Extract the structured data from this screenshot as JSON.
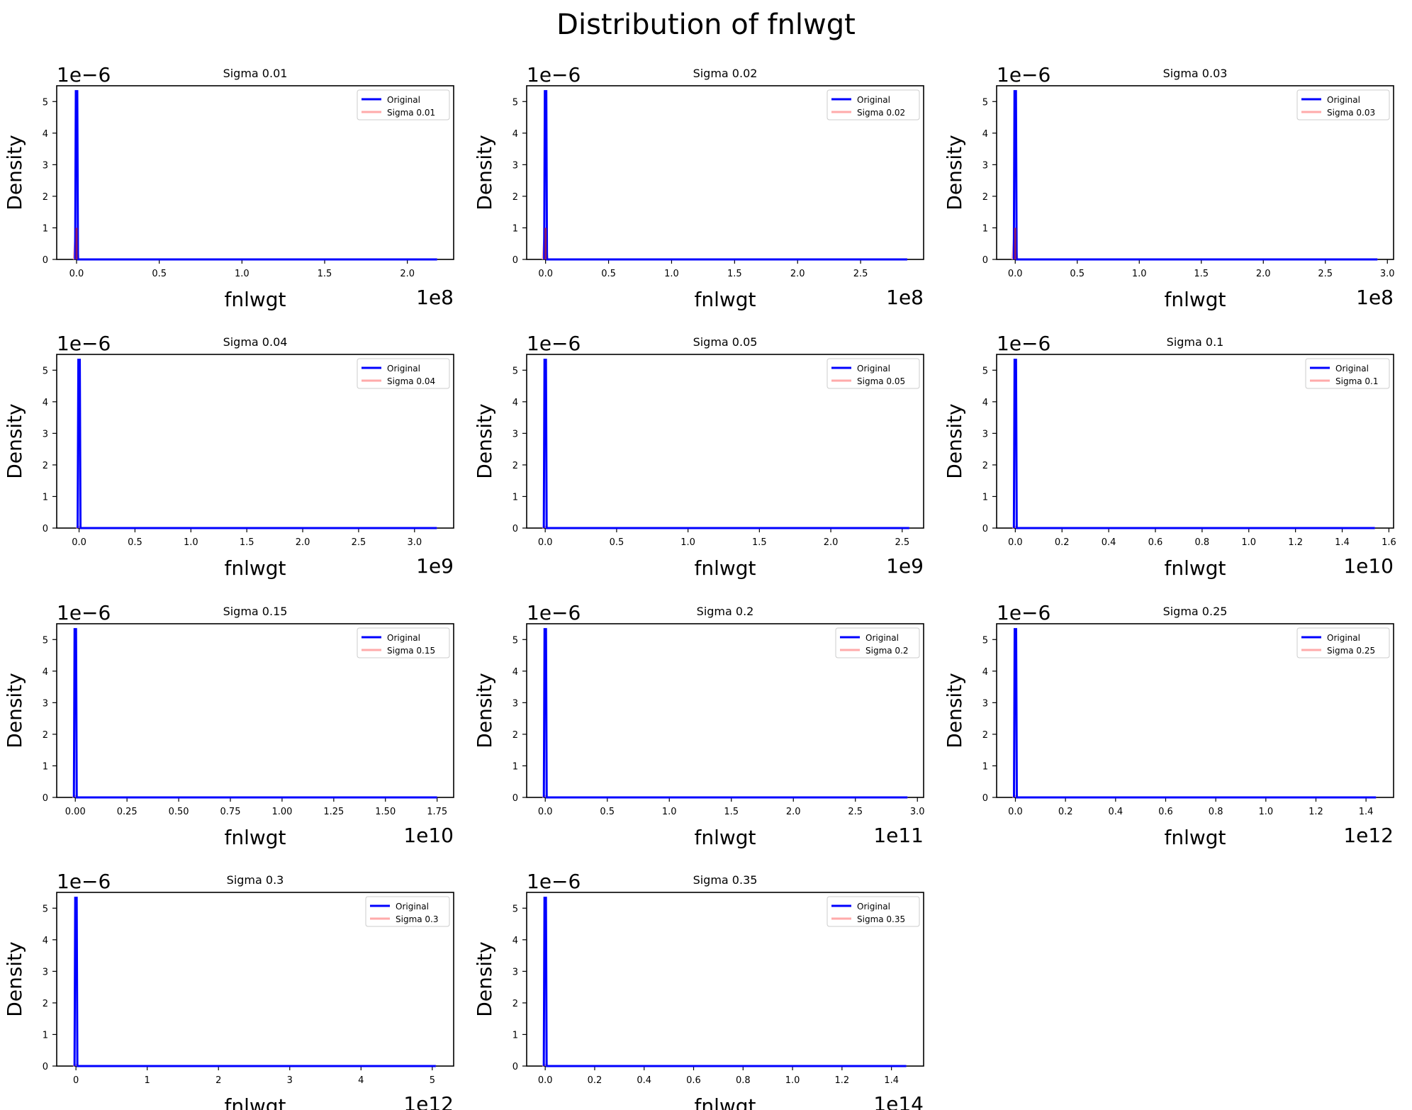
{
  "figure_title": "Distribution of fnlwgt",
  "colors": {
    "original": "#0000ff",
    "sigma": "#ffaaaa",
    "overlap": "#8a1a6b"
  },
  "chart_data": [
    {
      "type": "line",
      "title": "Sigma 0.01",
      "xlabel": "fnlwgt",
      "ylabel": "Density",
      "x_offset": "1e8",
      "y_offset": "1e−6",
      "xlim": [
        -0.12,
        2.28
      ],
      "ylim": [
        0,
        5.5
      ],
      "xticks": [
        0,
        0.5,
        1.0,
        1.5,
        2.0
      ],
      "xtick_labels": [
        "0.0",
        "0.5",
        "1.0",
        "1.5",
        "2.0"
      ],
      "yticks": [
        0,
        1,
        2,
        3,
        4,
        5
      ],
      "ytick_labels": [
        "0",
        "1",
        "2",
        "3",
        "4",
        "5"
      ],
      "line_x_end": 2.18,
      "series": [
        {
          "name": "Original",
          "peak_x": 0,
          "peak_y": 5.33
        },
        {
          "name": "Sigma 0.01",
          "peak_x": 0,
          "peak_y": 1.0
        }
      ]
    },
    {
      "type": "line",
      "title": "Sigma 0.02",
      "xlabel": "fnlwgt",
      "ylabel": "Density",
      "x_offset": "1e8",
      "y_offset": "1e−6",
      "xlim": [
        -0.15,
        3.0
      ],
      "ylim": [
        0,
        5.5
      ],
      "xticks": [
        0,
        0.5,
        1.0,
        1.5,
        2.0,
        2.5
      ],
      "xtick_labels": [
        "0.0",
        "0.5",
        "1.0",
        "1.5",
        "2.0",
        "2.5"
      ],
      "yticks": [
        0,
        1,
        2,
        3,
        4,
        5
      ],
      "ytick_labels": [
        "0",
        "1",
        "2",
        "3",
        "4",
        "5"
      ],
      "line_x_end": 2.87,
      "series": [
        {
          "name": "Original",
          "peak_x": 0,
          "peak_y": 5.33
        },
        {
          "name": "Sigma 0.02",
          "peak_x": 0,
          "peak_y": 1.0
        }
      ]
    },
    {
      "type": "line",
      "title": "Sigma 0.03",
      "xlabel": "fnlwgt",
      "ylabel": "Density",
      "x_offset": "1e8",
      "y_offset": "1e−6",
      "xlim": [
        -0.15,
        3.05
      ],
      "ylim": [
        0,
        5.5
      ],
      "xticks": [
        0,
        0.5,
        1.0,
        1.5,
        2.0,
        2.5,
        3.0
      ],
      "xtick_labels": [
        "0.0",
        "0.5",
        "1.0",
        "1.5",
        "2.0",
        "2.5",
        "3.0"
      ],
      "yticks": [
        0,
        1,
        2,
        3,
        4,
        5
      ],
      "ytick_labels": [
        "0",
        "1",
        "2",
        "3",
        "4",
        "5"
      ],
      "line_x_end": 2.92,
      "series": [
        {
          "name": "Original",
          "peak_x": 0,
          "peak_y": 5.33
        },
        {
          "name": "Sigma 0.03",
          "peak_x": 0,
          "peak_y": 1.0
        }
      ]
    },
    {
      "type": "line",
      "title": "Sigma 0.04",
      "xlabel": "fnlwgt",
      "ylabel": "Density",
      "x_offset": "1e9",
      "y_offset": "1e−6",
      "xlim": [
        -0.2,
        3.35
      ],
      "ylim": [
        0,
        5.5
      ],
      "xticks": [
        0,
        0.5,
        1.0,
        1.5,
        2.0,
        2.5,
        3.0
      ],
      "xtick_labels": [
        "0.0",
        "0.5",
        "1.0",
        "1.5",
        "2.0",
        "2.5",
        "3.0"
      ],
      "yticks": [
        0,
        1,
        2,
        3,
        4,
        5
      ],
      "ytick_labels": [
        "0",
        "1",
        "2",
        "3",
        "4",
        "5"
      ],
      "line_x_end": 3.2,
      "series": [
        {
          "name": "Original",
          "peak_x": 0,
          "peak_y": 5.33
        },
        {
          "name": "Sigma 0.04",
          "peak_x": 0,
          "peak_y": 0.05
        }
      ]
    },
    {
      "type": "line",
      "title": "Sigma 0.05",
      "xlabel": "fnlwgt",
      "ylabel": "Density",
      "x_offset": "1e9",
      "y_offset": "1e−6",
      "xlim": [
        -0.13,
        2.65
      ],
      "ylim": [
        0,
        5.5
      ],
      "xticks": [
        0,
        0.5,
        1.0,
        1.5,
        2.0,
        2.5
      ],
      "xtick_labels": [
        "0.0",
        "0.5",
        "1.0",
        "1.5",
        "2.0",
        "2.5"
      ],
      "yticks": [
        0,
        1,
        2,
        3,
        4,
        5
      ],
      "ytick_labels": [
        "0",
        "1",
        "2",
        "3",
        "4",
        "5"
      ],
      "line_x_end": 2.55,
      "series": [
        {
          "name": "Original",
          "peak_x": 0,
          "peak_y": 5.33
        },
        {
          "name": "Sigma 0.05",
          "peak_x": 0,
          "peak_y": 0.05
        }
      ]
    },
    {
      "type": "line",
      "title": "Sigma 0.1",
      "xlabel": "fnlwgt",
      "ylabel": "Density",
      "x_offset": "1e10",
      "y_offset": "1e−6",
      "xlim": [
        -0.08,
        1.62
      ],
      "ylim": [
        0,
        5.5
      ],
      "xticks": [
        0,
        0.2,
        0.4,
        0.6,
        0.8,
        1.0,
        1.2,
        1.4,
        1.6
      ],
      "xtick_labels": [
        "0.0",
        "0.2",
        "0.4",
        "0.6",
        "0.8",
        "1.0",
        "1.2",
        "1.4",
        "1.6"
      ],
      "yticks": [
        0,
        1,
        2,
        3,
        4,
        5
      ],
      "ytick_labels": [
        "0",
        "1",
        "2",
        "3",
        "4",
        "5"
      ],
      "line_x_end": 1.54,
      "series": [
        {
          "name": "Original",
          "peak_x": 0,
          "peak_y": 5.33
        },
        {
          "name": "Sigma 0.1",
          "peak_x": 0,
          "peak_y": 0.05
        }
      ]
    },
    {
      "type": "line",
      "title": "Sigma 0.15",
      "xlabel": "fnlwgt",
      "ylabel": "Density",
      "x_offset": "1e10",
      "y_offset": "1e−6",
      "xlim": [
        -0.09,
        1.83
      ],
      "ylim": [
        0,
        5.5
      ],
      "xticks": [
        0,
        0.25,
        0.5,
        0.75,
        1.0,
        1.25,
        1.5,
        1.75
      ],
      "xtick_labels": [
        "0.00",
        "0.25",
        "0.50",
        "0.75",
        "1.00",
        "1.25",
        "1.50",
        "1.75"
      ],
      "yticks": [
        0,
        1,
        2,
        3,
        4,
        5
      ],
      "ytick_labels": [
        "0",
        "1",
        "2",
        "3",
        "4",
        "5"
      ],
      "line_x_end": 1.75,
      "series": [
        {
          "name": "Original",
          "peak_x": 0,
          "peak_y": 5.33
        },
        {
          "name": "Sigma 0.15",
          "peak_x": 0,
          "peak_y": 0.05
        }
      ]
    },
    {
      "type": "line",
      "title": "Sigma 0.2",
      "xlabel": "fnlwgt",
      "ylabel": "Density",
      "x_offset": "1e11",
      "y_offset": "1e−6",
      "xlim": [
        -0.15,
        3.05
      ],
      "ylim": [
        0,
        5.5
      ],
      "xticks": [
        0,
        0.5,
        1.0,
        1.5,
        2.0,
        2.5,
        3.0
      ],
      "xtick_labels": [
        "0.0",
        "0.5",
        "1.0",
        "1.5",
        "2.0",
        "2.5",
        "3.0"
      ],
      "yticks": [
        0,
        1,
        2,
        3,
        4,
        5
      ],
      "ytick_labels": [
        "0",
        "1",
        "2",
        "3",
        "4",
        "5"
      ],
      "line_x_end": 2.92,
      "series": [
        {
          "name": "Original",
          "peak_x": 0,
          "peak_y": 5.33
        },
        {
          "name": "Sigma 0.2",
          "peak_x": 0,
          "peak_y": 0.05
        }
      ]
    },
    {
      "type": "line",
      "title": "Sigma 0.25",
      "xlabel": "fnlwgt",
      "ylabel": "Density",
      "x_offset": "1e12",
      "y_offset": "1e−6",
      "xlim": [
        -0.075,
        1.51
      ],
      "ylim": [
        0,
        5.5
      ],
      "xticks": [
        0,
        0.2,
        0.4,
        0.6,
        0.8,
        1.0,
        1.2,
        1.4
      ],
      "xtick_labels": [
        "0.0",
        "0.2",
        "0.4",
        "0.6",
        "0.8",
        "1.0",
        "1.2",
        "1.4"
      ],
      "yticks": [
        0,
        1,
        2,
        3,
        4,
        5
      ],
      "ytick_labels": [
        "0",
        "1",
        "2",
        "3",
        "4",
        "5"
      ],
      "line_x_end": 1.44,
      "series": [
        {
          "name": "Original",
          "peak_x": 0,
          "peak_y": 5.33
        },
        {
          "name": "Sigma 0.25",
          "peak_x": 0,
          "peak_y": 0.05
        }
      ]
    },
    {
      "type": "line",
      "title": "Sigma 0.3",
      "xlabel": "fnlwgt",
      "ylabel": "Density",
      "x_offset": "1e12",
      "y_offset": "1e−6",
      "xlim": [
        -0.27,
        5.3
      ],
      "ylim": [
        0,
        5.5
      ],
      "xticks": [
        0,
        1,
        2,
        3,
        4,
        5
      ],
      "xtick_labels": [
        "0",
        "1",
        "2",
        "3",
        "4",
        "5"
      ],
      "yticks": [
        0,
        1,
        2,
        3,
        4,
        5
      ],
      "ytick_labels": [
        "0",
        "1",
        "2",
        "3",
        "4",
        "5"
      ],
      "line_x_end": 5.05,
      "series": [
        {
          "name": "Original",
          "peak_x": 0,
          "peak_y": 5.33
        },
        {
          "name": "Sigma 0.3",
          "peak_x": 0,
          "peak_y": 0.05
        }
      ]
    },
    {
      "type": "line",
      "title": "Sigma 0.35",
      "xlabel": "fnlwgt",
      "ylabel": "Density",
      "x_offset": "1e14",
      "y_offset": "1e−6",
      "xlim": [
        -0.075,
        1.53
      ],
      "ylim": [
        0,
        5.5
      ],
      "xticks": [
        0,
        0.2,
        0.4,
        0.6,
        0.8,
        1.0,
        1.2,
        1.4
      ],
      "xtick_labels": [
        "0.0",
        "0.2",
        "0.4",
        "0.6",
        "0.8",
        "1.0",
        "1.2",
        "1.4"
      ],
      "yticks": [
        0,
        1,
        2,
        3,
        4,
        5
      ],
      "ytick_labels": [
        "0",
        "1",
        "2",
        "3",
        "4",
        "5"
      ],
      "line_x_end": 1.46,
      "series": [
        {
          "name": "Original",
          "peak_x": 0,
          "peak_y": 5.33
        },
        {
          "name": "Sigma 0.35",
          "peak_x": 0,
          "peak_y": 0.05
        }
      ]
    }
  ]
}
